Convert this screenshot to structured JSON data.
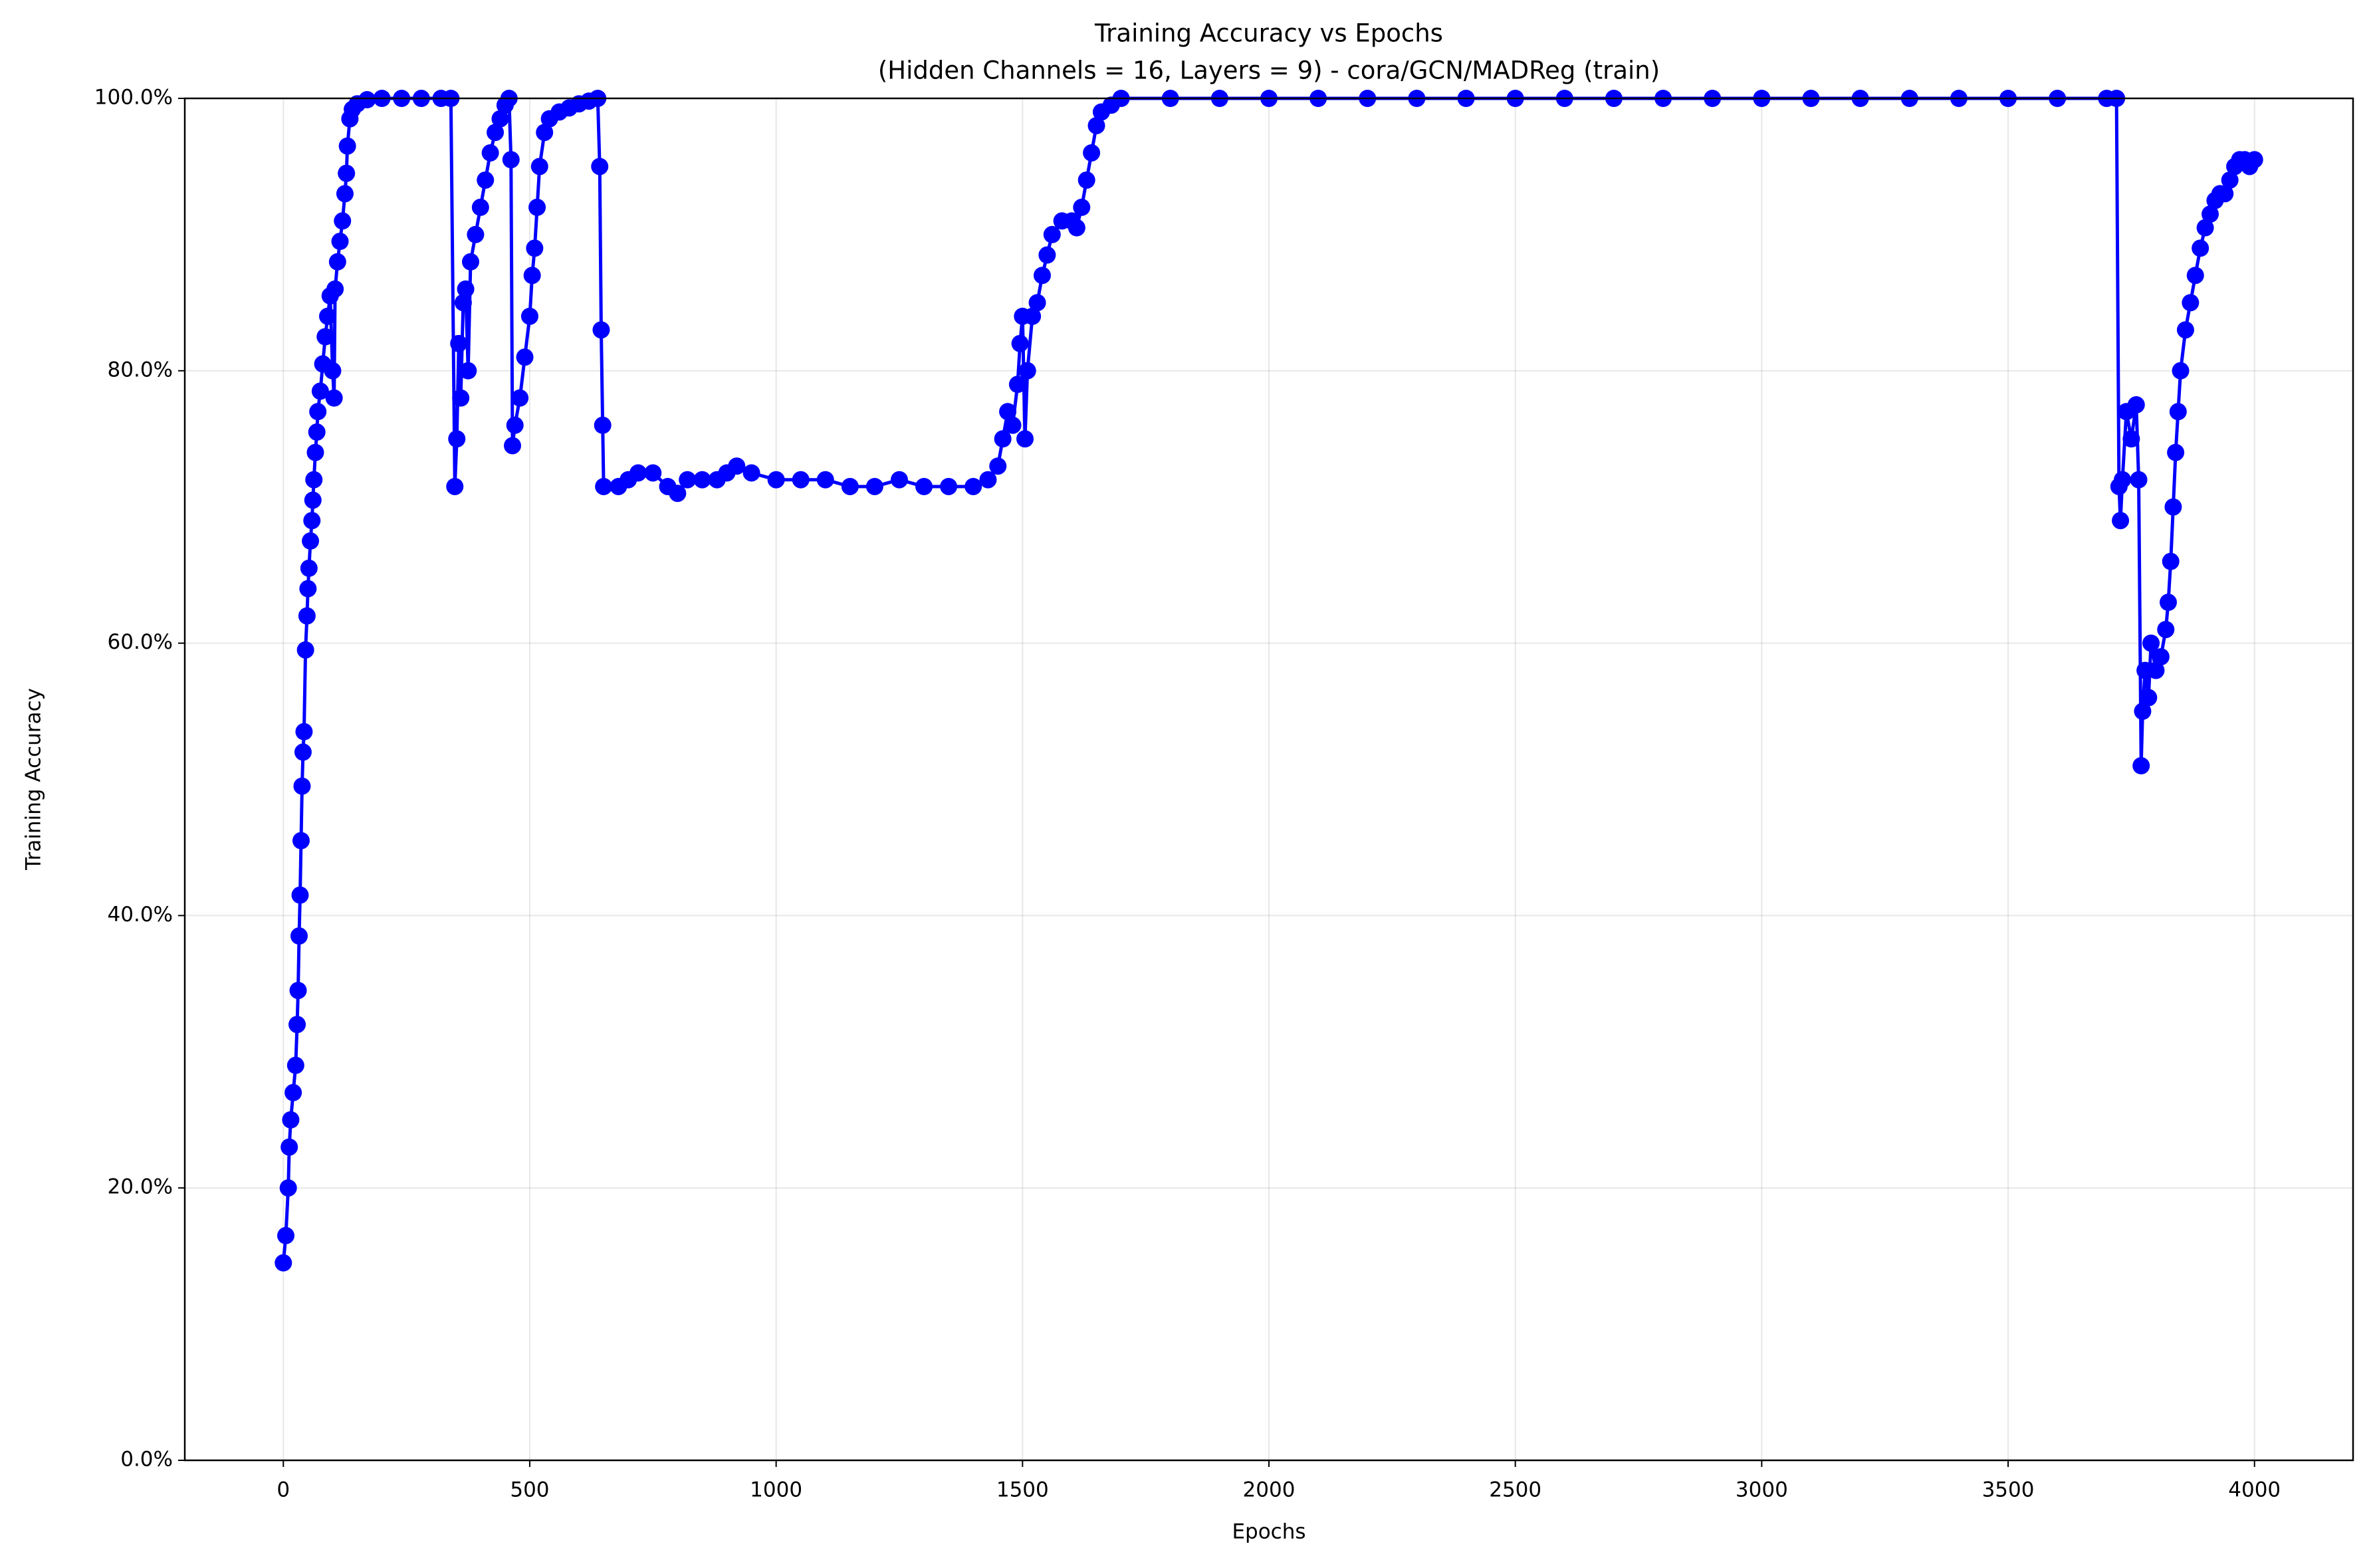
{
  "chart_data": {
    "type": "line",
    "title": "Training Accuracy vs Epochs",
    "subtitle": "(Hidden Channels = 16, Layers = 9) - cora/GCN/MADReg (train)",
    "x_label": "Epochs",
    "y_label": "Training Accuracy",
    "xlim": [
      -200,
      4200
    ],
    "ylim": [
      0,
      100
    ],
    "xticks": [
      0,
      500,
      1000,
      1500,
      2000,
      2500,
      3000,
      3500,
      4000
    ],
    "yticks": [
      {
        "value": 0,
        "label": "0.0%"
      },
      {
        "value": 20,
        "label": "20.0%"
      },
      {
        "value": 40,
        "label": "40.0%"
      },
      {
        "value": 60,
        "label": "60.0%"
      },
      {
        "value": 80,
        "label": "80.0%"
      },
      {
        "value": 100,
        "label": "100.0%"
      }
    ],
    "grid": true,
    "series": [
      {
        "color": "#0000ff",
        "x": [
          0,
          5,
          10,
          12,
          15,
          20,
          25,
          28,
          30,
          32,
          34,
          36,
          38,
          40,
          42,
          45,
          48,
          50,
          52,
          55,
          58,
          60,
          62,
          65,
          68,
          70,
          75,
          80,
          85,
          90,
          95,
          100,
          103,
          105,
          110,
          115,
          120,
          125,
          128,
          130,
          135,
          140,
          150,
          170,
          200,
          240,
          280,
          320,
          340,
          348,
          352,
          356,
          360,
          365,
          370,
          375,
          380,
          390,
          400,
          410,
          420,
          430,
          440,
          450,
          458,
          462,
          465,
          470,
          480,
          490,
          500,
          505,
          510,
          515,
          520,
          530,
          540,
          560,
          580,
          600,
          620,
          638,
          642,
          645,
          648,
          650,
          680,
          700,
          720,
          750,
          780,
          800,
          820,
          850,
          880,
          900,
          920,
          950,
          1000,
          1050,
          1100,
          1150,
          1200,
          1250,
          1300,
          1350,
          1400,
          1430,
          1450,
          1460,
          1470,
          1480,
          1490,
          1495,
          1500,
          1505,
          1510,
          1520,
          1530,
          1540,
          1550,
          1560,
          1580,
          1600,
          1610,
          1620,
          1630,
          1640,
          1650,
          1660,
          1680,
          1700,
          1800,
          1900,
          2000,
          2100,
          2200,
          2300,
          2400,
          2500,
          2600,
          2700,
          2800,
          2900,
          3000,
          3100,
          3200,
          3300,
          3400,
          3500,
          3600,
          3700,
          3720,
          3725,
          3728,
          3732,
          3740,
          3750,
          3760,
          3765,
          3770,
          3773,
          3778,
          3785,
          3790,
          3800,
          3810,
          3820,
          3825,
          3830,
          3835,
          3840,
          3845,
          3850,
          3860,
          3870,
          3880,
          3890,
          3900,
          3910,
          3920,
          3930,
          3940,
          3950,
          3960,
          3970,
          3980,
          3990,
          4000
        ],
        "values": [
          14.5,
          16.5,
          20,
          23,
          25,
          27,
          29,
          32,
          34.5,
          38.5,
          41.5,
          45.5,
          49.5,
          52,
          53.5,
          59.5,
          62,
          64,
          65.5,
          67.5,
          69,
          70.5,
          72,
          74,
          75.5,
          77,
          78.5,
          80.5,
          82.5,
          84,
          85.5,
          80,
          78,
          86,
          88,
          89.5,
          91,
          93,
          94.5,
          96.5,
          98.5,
          99.2,
          99.6,
          99.9,
          100,
          100,
          100,
          100,
          100,
          71.5,
          75,
          82,
          78,
          85,
          86,
          80,
          88,
          90,
          92,
          94,
          96,
          97.5,
          98.5,
          99.5,
          100,
          95.5,
          74.5,
          76,
          78,
          81,
          84,
          87,
          89,
          92,
          95,
          97.5,
          98.5,
          99,
          99.3,
          99.6,
          99.8,
          100,
          95,
          83,
          76,
          71.5,
          71.5,
          72,
          72.5,
          72.5,
          71.5,
          71,
          72,
          72,
          72,
          72.5,
          73,
          72.5,
          72,
          72,
          72,
          71.5,
          71.5,
          72,
          71.5,
          71.5,
          71.5,
          72,
          73,
          75,
          77,
          76,
          79,
          82,
          84,
          75,
          80,
          84,
          85,
          87,
          88.5,
          90,
          91,
          91,
          90.5,
          92,
          94,
          96,
          98,
          99,
          99.5,
          100,
          100,
          100,
          100,
          100,
          100,
          100,
          100,
          100,
          100,
          100,
          100,
          100,
          100,
          100,
          100,
          100,
          100,
          100,
          100,
          100,
          100,
          71.5,
          69,
          72,
          77,
          75,
          77.5,
          72,
          51,
          55,
          58,
          56,
          60,
          58,
          59,
          61,
          63,
          66,
          70,
          74,
          77,
          80,
          83,
          85,
          87,
          89,
          90.5,
          91.5,
          92.5,
          93,
          93,
          94,
          95,
          95.5,
          95.5,
          95,
          95.5
        ]
      }
    ]
  }
}
